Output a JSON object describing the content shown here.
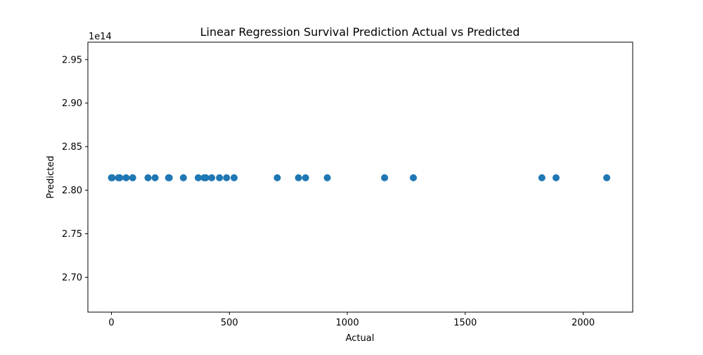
{
  "chart_data": {
    "type": "scatter",
    "title": "Linear Regression Survival Prediction Actual vs Predicted",
    "xlabel": "Actual",
    "ylabel": "Predicted",
    "y_offset_label": "1e14",
    "xlim": [
      -100,
      2210
    ],
    "ylim": [
      2.66,
      2.97
    ],
    "x_ticks": [
      0,
      500,
      1000,
      1500,
      2000
    ],
    "x_tick_labels": [
      "0",
      "500",
      "1000",
      "1500",
      "2000"
    ],
    "y_ticks": [
      2.7,
      2.75,
      2.8,
      2.85,
      2.9,
      2.95
    ],
    "y_tick_labels": [
      "2.70",
      "2.75",
      "2.80",
      "2.85",
      "2.90",
      "2.95"
    ],
    "grid": false,
    "marker_color": "#1f77b4",
    "x": [
      0,
      3,
      30,
      35,
      62,
      90,
      155,
      185,
      242,
      245,
      305,
      368,
      393,
      400,
      425,
      458,
      488,
      520,
      703,
      793,
      823,
      915,
      1158,
      1280,
      1825,
      1885,
      2100
    ],
    "y": [
      2.8143,
      2.8143,
      2.8143,
      2.8143,
      2.8143,
      2.8143,
      2.8143,
      2.8143,
      2.8143,
      2.8143,
      2.8143,
      2.8143,
      2.8143,
      2.8143,
      2.8143,
      2.8143,
      2.8143,
      2.8143,
      2.8143,
      2.8143,
      2.8143,
      2.8143,
      2.8143,
      2.8143,
      2.8143,
      2.8143,
      2.8143
    ]
  }
}
